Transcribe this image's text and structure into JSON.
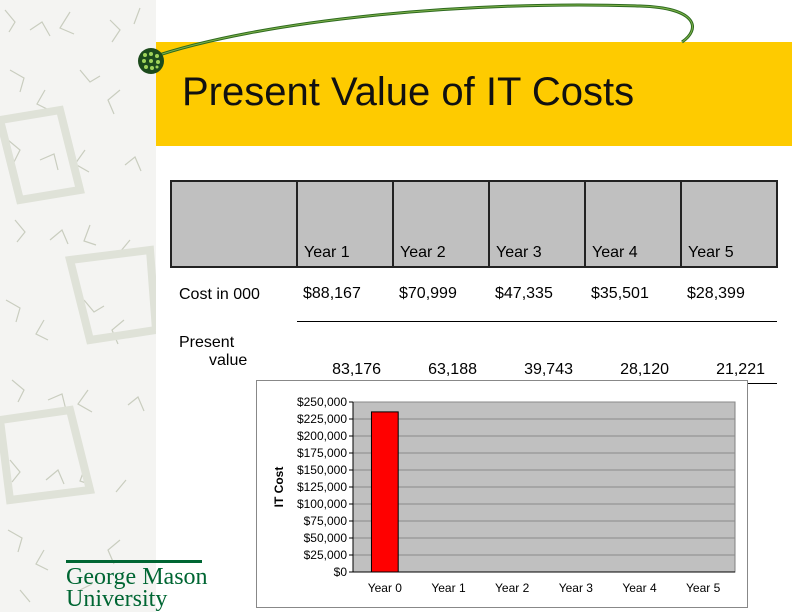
{
  "slide": {
    "title": "Present Value of IT Costs"
  },
  "table": {
    "headers": [
      "",
      "Year 1",
      "Year 2",
      "Year 3",
      "Year 4",
      "Year 5"
    ],
    "rows": [
      {
        "label": "Cost in 000",
        "cells": [
          "$88,167",
          "$70,999",
          "$47,335",
          "$35,501",
          "$28,399"
        ]
      },
      {
        "label_line1": "Present",
        "label_line2": "value",
        "cells": [
          "83,176",
          "63,188",
          "39,743",
          "28,120",
          "21,221"
        ]
      }
    ]
  },
  "chart_data": {
    "type": "bar",
    "categories": [
      "Year 0",
      "Year 1",
      "Year 2",
      "Year 3",
      "Year 4",
      "Year 5"
    ],
    "values": [
      235448,
      0,
      0,
      0,
      0,
      0
    ],
    "ylabel": "IT Cost",
    "ylim": [
      0,
      250000
    ],
    "yticks": [
      "$0",
      "$25,000",
      "$50,000",
      "$75,000",
      "$100,000",
      "$125,000",
      "$150,000",
      "$175,000",
      "$200,000",
      "$225,000",
      "$250,000"
    ],
    "grid": true,
    "colors": {
      "bar": "#ff0000",
      "plot_bg": "#c0c0c0",
      "frame_bg": "#ffffff"
    }
  },
  "branding": {
    "line1": "George Mason",
    "line2": "University"
  },
  "colors": {
    "title_bar": "#fecb00",
    "brand": "#006633"
  }
}
